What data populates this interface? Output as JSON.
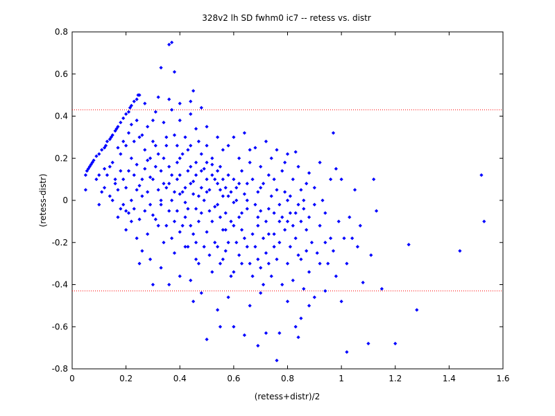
{
  "chart_data": {
    "type": "scatter",
    "title": "328v2 lh SD fwhm0 ic7 -- retess vs. distr",
    "xlabel": "(retess+distr)/2",
    "ylabel": "(retess-distr)",
    "xlim": [
      0,
      1.6
    ],
    "ylim": [
      -0.8,
      0.8
    ],
    "xticks": [
      "0",
      "0.2",
      "0.4",
      "0.6",
      "0.8",
      "1",
      "1.2",
      "1.4",
      "1.6"
    ],
    "yticks": [
      "0.8",
      "0.6",
      "0.4",
      "0.2",
      "0",
      "-0.2",
      "-0.4",
      "-0.6",
      "-0.8"
    ],
    "reference_lines": [
      0.43,
      -0.43
    ],
    "grid": false,
    "marker_color": "#0000ff",
    "reference_line_color": "#ff0000",
    "points": [
      [
        0.05,
        0.12
      ],
      [
        0.055,
        0.14
      ],
      [
        0.06,
        0.15
      ],
      [
        0.065,
        0.16
      ],
      [
        0.07,
        0.17
      ],
      [
        0.075,
        0.18
      ],
      [
        0.08,
        0.19
      ],
      [
        0.09,
        0.21
      ],
      [
        0.1,
        0.22
      ],
      [
        0.11,
        0.24
      ],
      [
        0.12,
        0.25
      ],
      [
        0.125,
        0.26
      ],
      [
        0.13,
        0.28
      ],
      [
        0.14,
        0.29
      ],
      [
        0.145,
        0.3
      ],
      [
        0.15,
        0.31
      ],
      [
        0.16,
        0.33
      ],
      [
        0.165,
        0.34
      ],
      [
        0.17,
        0.35
      ],
      [
        0.18,
        0.37
      ],
      [
        0.19,
        0.39
      ],
      [
        0.2,
        0.41
      ],
      [
        0.21,
        0.42
      ],
      [
        0.215,
        0.44
      ],
      [
        0.22,
        0.45
      ],
      [
        0.23,
        0.47
      ],
      [
        0.24,
        0.48
      ],
      [
        0.245,
        0.5
      ],
      [
        0.25,
        0.5
      ],
      [
        0.05,
        0.05
      ],
      [
        0.1,
        0.12
      ],
      [
        0.12,
        0.15
      ],
      [
        0.15,
        0.18
      ],
      [
        0.17,
        0.25
      ],
      [
        0.19,
        0.28
      ],
      [
        0.21,
        0.32
      ],
      [
        0.22,
        0.36
      ],
      [
        0.24,
        0.38
      ],
      [
        0.27,
        0.46
      ],
      [
        0.33,
        0.63
      ],
      [
        0.36,
        0.74
      ],
      [
        0.37,
        0.75
      ],
      [
        0.38,
        0.61
      ],
      [
        0.32,
        0.49
      ],
      [
        0.45,
        0.52
      ],
      [
        0.37,
        0.43
      ],
      [
        0.44,
        0.47
      ],
      [
        0.48,
        0.44
      ],
      [
        0.36,
        0.48
      ],
      [
        0.4,
        0.46
      ],
      [
        0.31,
        0.42
      ],
      [
        0.3,
        0.38
      ],
      [
        0.28,
        0.35
      ],
      [
        0.26,
        0.31
      ],
      [
        0.34,
        0.37
      ],
      [
        0.23,
        0.28
      ],
      [
        0.25,
        0.3
      ],
      [
        0.2,
        0.26
      ],
      [
        0.18,
        0.22
      ],
      [
        0.14,
        0.16
      ],
      [
        0.13,
        0.12
      ],
      [
        0.16,
        0.08
      ],
      [
        0.12,
        0.06
      ],
      [
        0.1,
        -0.02
      ],
      [
        0.09,
        0.1
      ],
      [
        0.11,
        0.04
      ],
      [
        0.14,
        0.02
      ],
      [
        0.17,
        0.05
      ],
      [
        0.18,
        -0.04
      ],
      [
        0.2,
        -0.05
      ],
      [
        0.19,
        0.1
      ],
      [
        0.21,
        0.14
      ],
      [
        0.22,
        0.2
      ],
      [
        0.23,
        0.12
      ],
      [
        0.24,
        0.17
      ],
      [
        0.25,
        0.07
      ],
      [
        0.26,
        0.02
      ],
      [
        0.27,
        0.24
      ],
      [
        0.28,
        0.19
      ],
      [
        0.29,
        0.11
      ],
      [
        0.3,
        0.28
      ],
      [
        0.31,
        0.16
      ],
      [
        0.32,
        0.05
      ],
      [
        0.33,
        -0.02
      ],
      [
        0.34,
        0.2
      ],
      [
        0.35,
        0.26
      ],
      [
        0.36,
        0.08
      ],
      [
        0.37,
        0.12
      ],
      [
        0.38,
        0.31
      ],
      [
        0.39,
        0.18
      ],
      [
        0.4,
        0.03
      ],
      [
        0.41,
        0.22
      ],
      [
        0.42,
        -0.01
      ],
      [
        0.43,
        0.14
      ],
      [
        0.44,
        0.26
      ],
      [
        0.45,
        0.09
      ],
      [
        0.46,
        0.18
      ],
      [
        0.47,
        0.02
      ],
      [
        0.48,
        0.22
      ],
      [
        0.49,
        0.15
      ],
      [
        0.5,
        0.1
      ],
      [
        0.51,
        0.05
      ],
      [
        0.52,
        0.2
      ],
      [
        0.53,
        -0.03
      ],
      [
        0.54,
        0.08
      ],
      [
        0.55,
        0.16
      ],
      [
        0.56,
        0.02
      ],
      [
        0.57,
        -0.06
      ],
      [
        0.58,
        0.12
      ],
      [
        0.59,
        0.04
      ],
      [
        0.6,
        -0.01
      ],
      [
        0.61,
        0.06
      ],
      [
        0.62,
        -0.08
      ],
      [
        0.63,
        0.14
      ],
      [
        0.64,
        0.03
      ],
      [
        0.65,
        -0.04
      ],
      [
        0.66,
        0.18
      ],
      [
        0.67,
        0.1
      ],
      [
        0.68,
        -0.02
      ],
      [
        0.69,
        0.04
      ],
      [
        0.7,
        -0.05
      ],
      [
        0.71,
        0.08
      ],
      [
        0.72,
        -0.1
      ],
      [
        0.73,
        0.12
      ],
      [
        0.74,
        0.02
      ],
      [
        0.75,
        -0.06
      ],
      [
        0.76,
        0.05
      ],
      [
        0.77,
        -0.02
      ],
      [
        0.78,
        -0.08
      ],
      [
        0.79,
        0.04
      ],
      [
        0.8,
        -0.1
      ],
      [
        0.81,
        0.02
      ],
      [
        0.82,
        -0.12
      ],
      [
        0.83,
        -0.06
      ],
      [
        0.84,
        -0.02
      ],
      [
        0.85,
        -0.1
      ],
      [
        0.86,
        -0.04
      ],
      [
        0.87,
        -0.14
      ],
      [
        0.88,
        -0.08
      ],
      [
        0.9,
        -0.02
      ],
      [
        0.92,
        -0.12
      ],
      [
        0.94,
        -0.06
      ],
      [
        0.96,
        0.1
      ],
      [
        0.97,
        0.32
      ],
      [
        0.98,
        0.15
      ],
      [
        1.0,
        0.1
      ],
      [
        1.05,
        0.05
      ],
      [
        1.12,
        0.1
      ],
      [
        0.92,
        0.18
      ],
      [
        0.88,
        0.13
      ],
      [
        0.83,
        0.23
      ],
      [
        0.79,
        0.18
      ],
      [
        0.36,
        -0.05
      ],
      [
        0.38,
        -0.1
      ],
      [
        0.4,
        -0.15
      ],
      [
        0.42,
        -0.08
      ],
      [
        0.44,
        -0.12
      ],
      [
        0.46,
        -0.2
      ],
      [
        0.48,
        -0.06
      ],
      [
        0.5,
        -0.15
      ],
      [
        0.52,
        -0.1
      ],
      [
        0.54,
        -0.22
      ],
      [
        0.56,
        -0.14
      ],
      [
        0.58,
        -0.2
      ],
      [
        0.6,
        -0.12
      ],
      [
        0.62,
        -0.26
      ],
      [
        0.64,
        -0.18
      ],
      [
        0.66,
        -0.3
      ],
      [
        0.68,
        -0.22
      ],
      [
        0.7,
        -0.32
      ],
      [
        0.72,
        -0.25
      ],
      [
        0.74,
        -0.36
      ],
      [
        0.76,
        -0.28
      ],
      [
        0.78,
        -0.4
      ],
      [
        0.8,
        -0.3
      ],
      [
        0.82,
        -0.38
      ],
      [
        0.84,
        -0.26
      ],
      [
        0.86,
        -0.42
      ],
      [
        0.88,
        -0.34
      ],
      [
        0.9,
        -0.46
      ],
      [
        0.92,
        -0.3
      ],
      [
        0.94,
        -0.2
      ],
      [
        0.96,
        -0.18
      ],
      [
        0.98,
        -0.36
      ],
      [
        1.0,
        -0.48
      ],
      [
        1.02,
        -0.3
      ],
      [
        1.04,
        -0.18
      ],
      [
        1.06,
        -0.22
      ],
      [
        1.08,
        -0.39
      ],
      [
        1.1,
        -0.68
      ],
      [
        1.13,
        -0.05
      ],
      [
        1.15,
        -0.42
      ],
      [
        1.2,
        -0.68
      ],
      [
        1.25,
        -0.21
      ],
      [
        1.28,
        -0.52
      ],
      [
        1.44,
        -0.24
      ],
      [
        1.52,
        0.12
      ],
      [
        1.53,
        -0.1
      ],
      [
        1.02,
        -0.72
      ],
      [
        0.76,
        -0.76
      ],
      [
        0.77,
        -0.63
      ],
      [
        0.84,
        -0.65
      ],
      [
        0.72,
        -0.63
      ],
      [
        0.69,
        -0.69
      ],
      [
        0.64,
        -0.64
      ],
      [
        0.6,
        -0.6
      ],
      [
        0.55,
        -0.6
      ],
      [
        0.5,
        -0.66
      ],
      [
        0.54,
        -0.52
      ],
      [
        0.48,
        -0.44
      ],
      [
        0.44,
        -0.38
      ],
      [
        0.4,
        -0.36
      ],
      [
        0.36,
        -0.4
      ],
      [
        0.3,
        -0.4
      ],
      [
        0.45,
        -0.48
      ],
      [
        0.58,
        -0.46
      ],
      [
        0.66,
        -0.5
      ],
      [
        0.7,
        -0.44
      ],
      [
        0.8,
        -0.48
      ],
      [
        0.85,
        -0.56
      ],
      [
        0.83,
        -0.6
      ],
      [
        0.88,
        -0.5
      ],
      [
        0.94,
        -0.43
      ],
      [
        0.6,
        -0.34
      ],
      [
        0.56,
        -0.28
      ],
      [
        0.52,
        -0.34
      ],
      [
        0.46,
        -0.28
      ],
      [
        0.42,
        -0.22
      ],
      [
        0.38,
        -0.25
      ],
      [
        0.34,
        -0.2
      ],
      [
        0.32,
        -0.12
      ],
      [
        0.3,
        -0.07
      ],
      [
        0.28,
        -0.16
      ],
      [
        0.26,
        -0.24
      ],
      [
        0.24,
        -0.18
      ],
      [
        0.22,
        -0.1
      ],
      [
        0.2,
        -0.14
      ],
      [
        0.25,
        -0.3
      ],
      [
        0.29,
        -0.28
      ],
      [
        0.33,
        -0.32
      ],
      [
        0.35,
        0.06
      ],
      [
        0.37,
        0.0
      ],
      [
        0.39,
        0.1
      ],
      [
        0.41,
        0.04
      ],
      [
        0.43,
        -0.04
      ],
      [
        0.45,
        0.03
      ],
      [
        0.47,
        -0.1
      ],
      [
        0.49,
        0.0
      ],
      [
        0.51,
        -0.05
      ],
      [
        0.53,
        0.1
      ],
      [
        0.55,
        -0.08
      ],
      [
        0.57,
        0.06
      ],
      [
        0.59,
        -0.1
      ],
      [
        0.61,
        0.0
      ],
      [
        0.63,
        -0.14
      ],
      [
        0.65,
        0.08
      ],
      [
        0.67,
        -0.16
      ],
      [
        0.69,
        -0.08
      ],
      [
        0.71,
        -0.18
      ],
      [
        0.73,
        -0.04
      ],
      [
        0.75,
        -0.16
      ],
      [
        0.77,
        -0.2
      ],
      [
        0.79,
        -0.14
      ],
      [
        0.81,
        -0.22
      ],
      [
        0.83,
        -0.18
      ],
      [
        0.85,
        -0.28
      ],
      [
        0.87,
        -0.24
      ],
      [
        0.89,
        -0.2
      ],
      [
        0.91,
        -0.25
      ],
      [
        0.95,
        -0.3
      ],
      [
        0.97,
        -0.24
      ],
      [
        0.99,
        -0.1
      ],
      [
        1.01,
        -0.18
      ],
      [
        1.03,
        -0.08
      ],
      [
        1.07,
        -0.12
      ],
      [
        1.11,
        -0.26
      ],
      [
        0.9,
        0.06
      ],
      [
        0.86,
        0.0
      ],
      [
        0.82,
        0.1
      ],
      [
        0.78,
        0.14
      ],
      [
        0.74,
        0.2
      ],
      [
        0.7,
        0.16
      ],
      [
        0.66,
        0.24
      ],
      [
        0.62,
        0.2
      ],
      [
        0.58,
        0.26
      ],
      [
        0.54,
        0.3
      ],
      [
        0.5,
        0.35
      ],
      [
        0.46,
        0.34
      ],
      [
        0.42,
        0.3
      ],
      [
        0.4,
        0.38
      ],
      [
        0.44,
        0.41
      ],
      [
        0.5,
        0.26
      ],
      [
        0.56,
        0.24
      ],
      [
        0.6,
        0.3
      ],
      [
        0.64,
        0.32
      ],
      [
        0.68,
        0.25
      ],
      [
        0.72,
        0.28
      ],
      [
        0.76,
        0.24
      ],
      [
        0.8,
        0.22
      ],
      [
        0.84,
        0.16
      ],
      [
        0.52,
        0.12
      ],
      [
        0.48,
        0.06
      ],
      [
        0.44,
        0.08
      ],
      [
        0.4,
        0.12
      ],
      [
        0.36,
        0.16
      ],
      [
        0.32,
        0.22
      ],
      [
        0.3,
        0.1
      ],
      [
        0.28,
        0.04
      ],
      [
        0.26,
        0.1
      ],
      [
        0.24,
        0.05
      ],
      [
        0.22,
        0.0
      ],
      [
        0.2,
        0.06
      ],
      [
        0.18,
        0.14
      ],
      [
        0.16,
        0.1
      ],
      [
        0.15,
        0.0
      ],
      [
        0.17,
        -0.08
      ],
      [
        0.19,
        -0.02
      ],
      [
        0.21,
        -0.06
      ],
      [
        0.23,
        -0.04
      ],
      [
        0.25,
        -0.09
      ],
      [
        0.27,
        -0.05
      ],
      [
        0.29,
        -0.02
      ],
      [
        0.31,
        -0.09
      ],
      [
        0.33,
        0.0
      ],
      [
        0.35,
        -0.12
      ],
      [
        0.37,
        -0.18
      ],
      [
        0.39,
        -0.05
      ],
      [
        0.41,
        -0.12
      ],
      [
        0.43,
        -0.22
      ],
      [
        0.45,
        -0.16
      ],
      [
        0.47,
        -0.3
      ],
      [
        0.49,
        -0.22
      ],
      [
        0.51,
        -0.26
      ],
      [
        0.53,
        -0.2
      ],
      [
        0.55,
        -0.3
      ],
      [
        0.57,
        -0.24
      ],
      [
        0.59,
        -0.36
      ],
      [
        0.61,
        -0.2
      ],
      [
        0.63,
        -0.3
      ],
      [
        0.65,
        -0.22
      ],
      [
        0.67,
        -0.36
      ],
      [
        0.69,
        -0.28
      ],
      [
        0.71,
        -0.4
      ],
      [
        0.73,
        -0.3
      ],
      [
        0.75,
        -0.22
      ],
      [
        0.62,
        0.08
      ],
      [
        0.58,
        0.02
      ],
      [
        0.54,
        -0.02
      ],
      [
        0.5,
        0.04
      ],
      [
        0.46,
        -0.04
      ],
      [
        0.42,
        0.06
      ],
      [
        0.38,
        0.04
      ],
      [
        0.34,
        0.08
      ],
      [
        0.55,
        0.05
      ],
      [
        0.6,
        0.1
      ],
      [
        0.65,
        0.0
      ],
      [
        0.7,
        0.06
      ],
      [
        0.75,
        0.1
      ],
      [
        0.8,
        0.0
      ],
      [
        0.85,
        0.05
      ],
      [
        0.57,
        -0.14
      ],
      [
        0.63,
        -0.06
      ],
      [
        0.69,
        -0.12
      ],
      [
        0.73,
        -0.16
      ],
      [
        0.77,
        -0.1
      ],
      [
        0.81,
        -0.06
      ],
      [
        0.87,
        0.08
      ],
      [
        0.93,
        0.0
      ],
      [
        0.48,
        0.14
      ],
      [
        0.44,
        0.16
      ],
      [
        0.4,
        0.2
      ],
      [
        0.52,
        0.17
      ],
      [
        0.56,
        0.1
      ],
      [
        0.47,
        0.28
      ],
      [
        0.43,
        0.24
      ],
      [
        0.39,
        0.26
      ],
      [
        0.35,
        0.3
      ],
      [
        0.33,
        0.14
      ],
      [
        0.31,
        0.26
      ],
      [
        0.29,
        0.2
      ],
      [
        0.27,
        0.15
      ],
      [
        0.46,
        0.12
      ],
      [
        0.5,
        0.18
      ],
      [
        0.54,
        0.14
      ]
    ]
  }
}
